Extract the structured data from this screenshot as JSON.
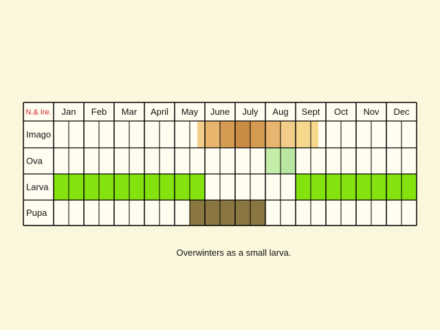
{
  "chart_data": {
    "type": "table",
    "corner_label": "N.& Ire.",
    "months": [
      "Jan",
      "Feb",
      "Mar",
      "April",
      "May",
      "June",
      "July",
      "Aug",
      "Sept",
      "Oct",
      "Nov",
      "Dec"
    ],
    "divisions_per_month": 2,
    "stages": [
      {
        "name": "Imago",
        "cells": [
          {
            "start": 9.5,
            "end": 10,
            "color": "#f2cd8a"
          },
          {
            "start": 10,
            "end": 11,
            "color": "#e7b56d"
          },
          {
            "start": 11,
            "end": 12,
            "color": "#d59b52"
          },
          {
            "start": 12,
            "end": 13,
            "color": "#c98c45"
          },
          {
            "start": 13,
            "end": 14,
            "color": "#d59b52"
          },
          {
            "start": 14,
            "end": 15,
            "color": "#e7b56d"
          },
          {
            "start": 15,
            "end": 16,
            "color": "#f2cd8a"
          },
          {
            "start": 16,
            "end": 17.5,
            "color": "#f6d88d"
          }
        ]
      },
      {
        "name": "Ova",
        "cells": [
          {
            "start": 14,
            "end": 15,
            "color": "#c5edaa"
          },
          {
            "start": 15,
            "end": 16,
            "color": "#b9e6a0"
          }
        ]
      },
      {
        "name": "Larva",
        "cells": [
          {
            "start": 0,
            "end": 10,
            "color": "#84e20f"
          },
          {
            "start": 16,
            "end": 24,
            "color": "#84e20f"
          }
        ]
      },
      {
        "name": "Pupa",
        "cells": [
          {
            "start": 9,
            "end": 14,
            "color": "#8a7640"
          }
        ]
      }
    ],
    "colors": {
      "corner_label": "#d32222",
      "grid_line": "#000000",
      "cell_bg": "#fffdf0",
      "page_bg": "#fbf7dc"
    }
  },
  "caption": "Overwinters as a small larva."
}
